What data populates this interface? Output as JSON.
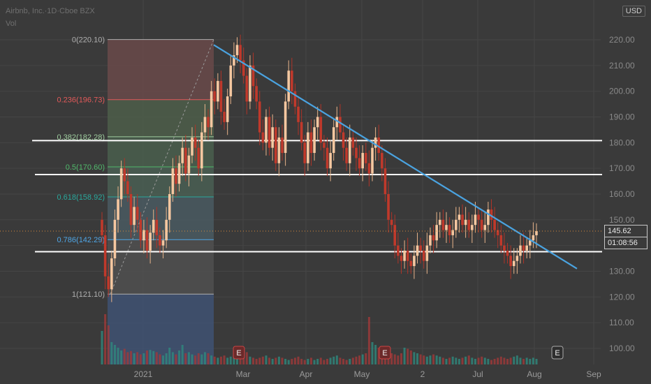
{
  "header": {
    "symbol_line": "Airbnb, Inc.·1D·Cboe BZX",
    "volume_label": "Vol",
    "currency": "USD"
  },
  "price_tag": {
    "price": "145.62",
    "countdown": "01:08:56"
  },
  "chart_data": {
    "type": "candlestick",
    "x_ticks": [
      "2021",
      "Mar",
      "Apr",
      "May",
      "2",
      "Jul",
      "Aug",
      "Sep"
    ],
    "y_ticks": [
      "210.00",
      "200.00",
      "190.00",
      "180.00",
      "170.00",
      "160.00",
      "150.00",
      "140.00",
      "130.00",
      "120.00",
      "110.00",
      "100.00"
    ],
    "ylim": [
      95,
      225
    ],
    "fibonacci": [
      {
        "label": "0(220.10)",
        "level": 0,
        "price": 220.1,
        "color": "#b0b0b0"
      },
      {
        "label": "0.236(196.73)",
        "level": 0.236,
        "price": 196.73,
        "color": "#e35a5a"
      },
      {
        "label": "0.382(182.28)",
        "level": 0.382,
        "price": 182.28,
        "color": "#9fce9f"
      },
      {
        "label": "0.5(170.60)",
        "level": 0.5,
        "price": 170.6,
        "color": "#50b96b"
      },
      {
        "label": "0.618(158.92)",
        "level": 0.618,
        "price": 158.92,
        "color": "#29a99d"
      },
      {
        "label": "0.786(142.29)",
        "level": 0.786,
        "price": 142.29,
        "color": "#4fa6e6"
      },
      {
        "label": "1(121.10)",
        "level": 1,
        "price": 121.1,
        "color": "#b0b0b0"
      }
    ],
    "support_levels": [
      180.8,
      167.6,
      137.6
    ],
    "trendline": {
      "start_price": 218,
      "end_price": 131
    },
    "earnings_markers": [
      "E",
      "E",
      "E"
    ],
    "series_closes": [
      144,
      128,
      123,
      135,
      150,
      158,
      170,
      165,
      160,
      148,
      155,
      150,
      142,
      146,
      138,
      145,
      150,
      144,
      140,
      142,
      150,
      160,
      170,
      164,
      172,
      178,
      168,
      175,
      182,
      178,
      170,
      184,
      190,
      186,
      200,
      196,
      204,
      192,
      188,
      198,
      210,
      214,
      218,
      212,
      206,
      196,
      210,
      202,
      196,
      184,
      180,
      190,
      178,
      186,
      172,
      182,
      176,
      196,
      208,
      200,
      194,
      188,
      180,
      172,
      184,
      176,
      186,
      190,
      180,
      178,
      170,
      176,
      186,
      190,
      184,
      178,
      172,
      182,
      178,
      174,
      170,
      176,
      172,
      168,
      178,
      182,
      176,
      170,
      160,
      150,
      148,
      140,
      136,
      134,
      138,
      134,
      132,
      136,
      140,
      138,
      134,
      140,
      144,
      142,
      148,
      150,
      146,
      148,
      144,
      146,
      150,
      152,
      148,
      150,
      146,
      148,
      152,
      150,
      146,
      148,
      154,
      150,
      146,
      144,
      140,
      138,
      136,
      132,
      134,
      136,
      140,
      138,
      140,
      142,
      144,
      145.62
    ],
    "volume": [
      60,
      90,
      70,
      40,
      35,
      30,
      25,
      28,
      22,
      24,
      20,
      22,
      18,
      20,
      25,
      26,
      24,
      22,
      18,
      16,
      20,
      30,
      22,
      18,
      25,
      35,
      20,
      22,
      18,
      16,
      20,
      18,
      22,
      20,
      16,
      14,
      12,
      14,
      16,
      12,
      14,
      16,
      18,
      16,
      20,
      22,
      14,
      12,
      10,
      12,
      14,
      16,
      12,
      10,
      12,
      14,
      12,
      10,
      8,
      10,
      12,
      14,
      10,
      8,
      10,
      12,
      8,
      10,
      12,
      8,
      10,
      12,
      14,
      16,
      12,
      10,
      8,
      10,
      12,
      14,
      16,
      18,
      20,
      85,
      40,
      35,
      30,
      25,
      28,
      22,
      20,
      18,
      16,
      20,
      30,
      28,
      25,
      22,
      20,
      18,
      16,
      14,
      16,
      18,
      16,
      14,
      12,
      10,
      12,
      14,
      12,
      10,
      12,
      14,
      16,
      12,
      10,
      12,
      14,
      12,
      10,
      8,
      10,
      12,
      14,
      12,
      10,
      12,
      14,
      16,
      12,
      10,
      12,
      10,
      12,
      10
    ]
  }
}
